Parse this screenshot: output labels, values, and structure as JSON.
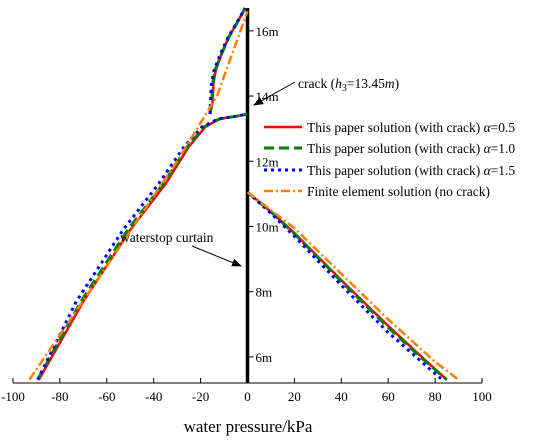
{
  "chart_data": {
    "type": "line",
    "xlabel": "water pressure/kPa",
    "xlim": [
      -100,
      100
    ],
    "ylim": [
      5.2,
      16.7
    ],
    "xticks": [
      "-100",
      "-80",
      "-60",
      "-40",
      "-20",
      "0",
      "20",
      "40",
      "60",
      "80",
      "100"
    ],
    "xtick_values": [
      -100,
      -80,
      -60,
      -40,
      -20,
      0,
      20,
      40,
      60,
      80,
      100
    ],
    "yticks": [
      "6m",
      "8m",
      "10m",
      "12m",
      "14m",
      "16m"
    ],
    "ytick_values": [
      6,
      8,
      10,
      12,
      14,
      16
    ],
    "legend_position": "right-middle",
    "legend": {
      "entries": [
        {
          "prefix": "This paper solution (with crack) ",
          "alpha_symbol": "α",
          "suffix": "=0.5"
        },
        {
          "prefix": "This paper solution (with crack) ",
          "alpha_symbol": "α",
          "suffix": "=1.0"
        },
        {
          "prefix": "This paper solution (with crack) ",
          "alpha_symbol": "α",
          "suffix": "=1.5"
        },
        {
          "prefix": "Finite element solution (no crack)",
          "alpha_symbol": "",
          "suffix": ""
        }
      ]
    },
    "annotations": {
      "crack": {
        "part1": "crack (",
        "h": "h",
        "sub": "3",
        "eq": "=13.45",
        "m": "m",
        "close": ")"
      },
      "curtain": "waterstop curtain"
    },
    "series": [
      {
        "name": "This paper solution (with crack) α=0.5",
        "color": "#ff0000",
        "style": "solid",
        "left": [
          [
            -89,
            5.3
          ],
          [
            -70,
            7.7
          ],
          [
            -50,
            9.9
          ],
          [
            -35,
            11.3
          ],
          [
            -25,
            12.45
          ],
          [
            -18,
            13.05
          ],
          [
            -12,
            13.3
          ],
          [
            -5,
            13.38
          ],
          [
            0,
            13.45
          ]
        ],
        "upper": [
          [
            -16,
            13.45
          ],
          [
            -15,
            13.75
          ],
          [
            -14.7,
            14.1
          ],
          [
            -14.5,
            14.4
          ],
          [
            -13.5,
            14.8
          ],
          [
            -11,
            15.3
          ],
          [
            -8,
            15.8
          ],
          [
            -4,
            16.3
          ],
          [
            -1,
            16.7
          ]
        ],
        "right": [
          [
            0,
            11.05
          ],
          [
            10,
            10.45
          ],
          [
            20,
            9.8
          ],
          [
            40,
            8.35
          ],
          [
            60,
            6.95
          ],
          [
            75,
            5.95
          ],
          [
            85,
            5.3
          ]
        ]
      },
      {
        "name": "This paper solution (with crack) α=1.0",
        "color": "#008000",
        "style": "dashed",
        "left": [
          [
            -89.5,
            5.3
          ],
          [
            -71,
            7.7
          ],
          [
            -51,
            9.9
          ],
          [
            -36,
            11.3
          ],
          [
            -25.5,
            12.45
          ],
          [
            -18.5,
            13.05
          ],
          [
            -12,
            13.3
          ],
          [
            -5,
            13.38
          ],
          [
            0,
            13.45
          ]
        ],
        "upper": [
          [
            -16,
            13.45
          ],
          [
            -15.3,
            13.75
          ],
          [
            -15,
            14.1
          ],
          [
            -14.8,
            14.4
          ],
          [
            -13.8,
            14.8
          ],
          [
            -11,
            15.3
          ],
          [
            -8,
            15.8
          ],
          [
            -4,
            16.3
          ],
          [
            -1,
            16.7
          ]
        ],
        "right": [
          [
            0,
            11.05
          ],
          [
            10,
            10.45
          ],
          [
            20,
            9.78
          ],
          [
            40,
            8.32
          ],
          [
            60,
            6.9
          ],
          [
            75,
            5.92
          ],
          [
            85,
            5.3
          ]
        ]
      },
      {
        "name": "This paper solution (with crack) α=1.5",
        "color": "#0000ff",
        "style": "dotted",
        "left": [
          [
            -89.5,
            5.3
          ],
          [
            -73,
            7.7
          ],
          [
            -53,
            9.9
          ],
          [
            -38,
            11.3
          ],
          [
            -27,
            12.45
          ],
          [
            -19.5,
            13.05
          ],
          [
            -12.5,
            13.3
          ],
          [
            -5,
            13.38
          ],
          [
            0,
            13.45
          ]
        ],
        "upper": [
          [
            -16,
            13.45
          ],
          [
            -15.8,
            13.75
          ],
          [
            -15.6,
            14.1
          ],
          [
            -15.3,
            14.4
          ],
          [
            -14.2,
            14.8
          ],
          [
            -11.5,
            15.3
          ],
          [
            -8.3,
            15.8
          ],
          [
            -4.2,
            16.3
          ],
          [
            -1,
            16.7
          ]
        ],
        "right": [
          [
            0,
            11.05
          ],
          [
            10,
            10.4
          ],
          [
            20,
            9.7
          ],
          [
            40,
            8.2
          ],
          [
            60,
            6.75
          ],
          [
            75,
            5.8
          ],
          [
            83,
            5.3
          ]
        ]
      },
      {
        "name": "Finite element solution (no crack)",
        "color": "#ff8000",
        "style": "dashdot",
        "left": [
          [
            -93,
            5.3
          ],
          [
            -58,
            9.0
          ],
          [
            -30,
            12.0
          ],
          [
            -13,
            14.0
          ],
          [
            0,
            16.6
          ]
        ],
        "right": [
          [
            0,
            11.05
          ],
          [
            20,
            9.95
          ],
          [
            40,
            8.55
          ],
          [
            60,
            7.15
          ],
          [
            80,
            5.85
          ],
          [
            90,
            5.3
          ]
        ]
      }
    ]
  }
}
